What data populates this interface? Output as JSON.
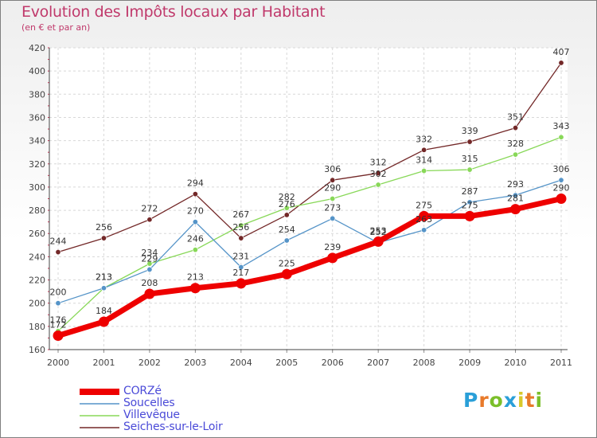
{
  "chart_data": {
    "type": "line",
    "title": "Evolution des Impôts locaux par Habitant",
    "subtitle": "(en € et par an)",
    "xlabel": "",
    "ylabel": "",
    "ylim": [
      160,
      420
    ],
    "yticks": [
      160,
      180,
      200,
      220,
      240,
      260,
      280,
      300,
      320,
      340,
      360,
      380,
      400,
      420
    ],
    "categories": [
      "2000",
      "2001",
      "2002",
      "2003",
      "2004",
      "2005",
      "2006",
      "2007",
      "2008",
      "2009",
      "2010",
      "2011"
    ],
    "legend_position": "bottom-left",
    "series": [
      {
        "name": "CORZé",
        "color": "#ee0000",
        "values": [
          172,
          184,
          208,
          213,
          217,
          225,
          239,
          253,
          275,
          275,
          281,
          290
        ]
      },
      {
        "name": "Soucelles",
        "color": "#5594c8",
        "values": [
          200,
          213,
          229,
          270,
          231,
          254,
          273,
          252,
          263,
          287,
          293,
          306
        ]
      },
      {
        "name": "Villevêque",
        "color": "#88d858",
        "values": [
          176,
          213,
          234,
          246,
          267,
          282,
          290,
          302,
          314,
          315,
          328,
          343
        ]
      },
      {
        "name": "Seiches-sur-le-Loir",
        "color": "#732828",
        "values": [
          244,
          256,
          272,
          294,
          256,
          276,
          306,
          312,
          332,
          339,
          351,
          407
        ]
      }
    ]
  },
  "logo": {
    "letters": [
      "P",
      "r",
      "o",
      "x",
      "i",
      "t",
      "i"
    ],
    "colors": [
      "#2a9fd8",
      "#e87a2a",
      "#7bbf2a",
      "#2a9fd8",
      "#d8c82a",
      "#e87a2a",
      "#7bbf2a"
    ]
  }
}
